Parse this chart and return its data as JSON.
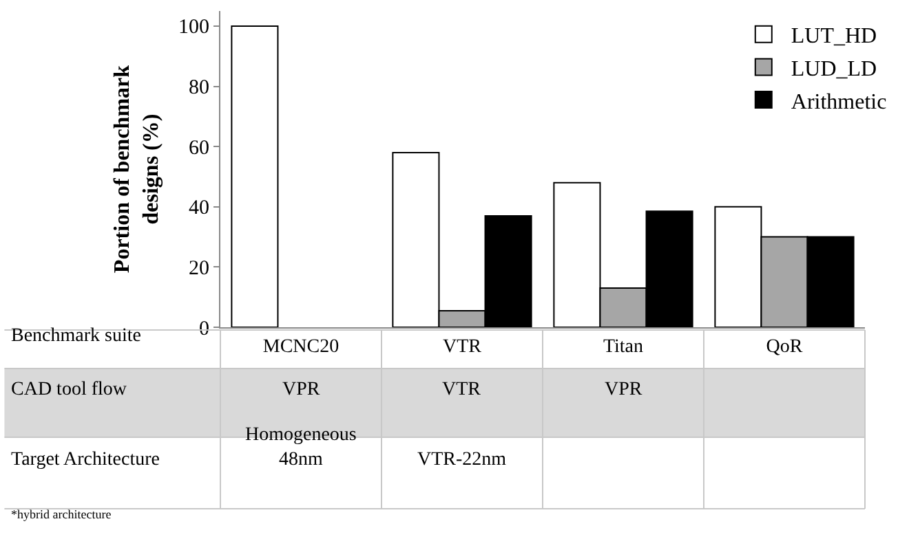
{
  "chart_data": {
    "type": "bar",
    "ylabel": "Portion of benchmark designs (%)",
    "xlabel": "Benchmark suite",
    "categories": [
      "MCNC20",
      "VTR",
      "Titan",
      "QoR"
    ],
    "series": [
      {
        "name": "LUT_HD",
        "color": "#ffffff",
        "values": [
          100,
          58,
          48,
          40
        ]
      },
      {
        "name": "LUD_LD",
        "color": "#a6a6a6",
        "values": [
          null,
          5.5,
          13,
          30
        ]
      },
      {
        "name": "Arithmetic",
        "color": "#000000",
        "values": [
          null,
          37,
          38.5,
          30
        ]
      }
    ],
    "ylim": [
      0,
      105
    ],
    "yticks": [
      0,
      20,
      40,
      60,
      80,
      100
    ],
    "grid": false,
    "legend": "top right",
    "annotations": [
      "CAD tool flow",
      "VPR",
      "VTR",
      "VPR",
      "Target Architecture",
      "Homogeneous 48nm",
      "VTR-22nm",
      "*hybrid architecture"
    ]
  }
}
